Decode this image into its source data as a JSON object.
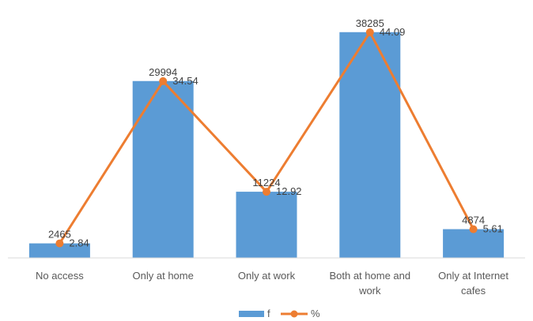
{
  "chart_data": {
    "type": "bar",
    "categories": [
      [
        "No access"
      ],
      [
        "Only at home"
      ],
      [
        "Only at work"
      ],
      [
        "Both at home and",
        "work"
      ],
      [
        "Only at Internet",
        "cafes"
      ]
    ],
    "series": [
      {
        "name": "f",
        "type": "bar",
        "values": [
          2465,
          29994,
          11224,
          38285,
          4874
        ],
        "color": "#5B9BD5"
      },
      {
        "name": "%",
        "type": "line",
        "values": [
          2.84,
          34.54,
          12.92,
          44.09,
          5.61
        ],
        "color": "#ED7D31"
      }
    ],
    "ylim_bar": [
      0,
      42000
    ],
    "ylim_line": [
      0,
      48.4
    ],
    "grid": false,
    "legend_position": "bottom"
  }
}
